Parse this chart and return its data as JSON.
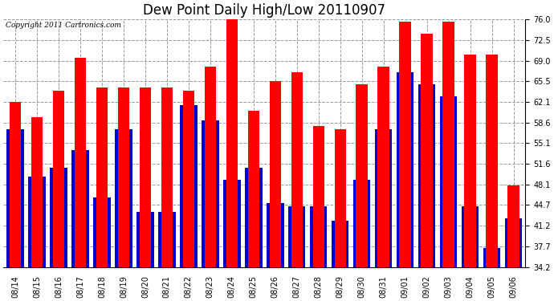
{
  "title": "Dew Point Daily High/Low 20110907",
  "copyright": "Copyright 2011 Cartronics.com",
  "dates": [
    "08/14",
    "08/15",
    "08/16",
    "08/17",
    "08/18",
    "08/19",
    "08/20",
    "08/21",
    "08/22",
    "08/23",
    "08/24",
    "08/25",
    "08/26",
    "08/27",
    "08/28",
    "08/29",
    "08/30",
    "08/31",
    "09/01",
    "09/02",
    "09/03",
    "09/04",
    "09/05",
    "09/06"
  ],
  "highs": [
    62.0,
    59.5,
    64.0,
    69.5,
    64.5,
    64.5,
    64.5,
    64.5,
    64.0,
    68.0,
    76.5,
    60.5,
    65.5,
    67.0,
    58.0,
    57.5,
    65.0,
    68.0,
    75.5,
    73.5,
    75.5,
    70.0,
    70.0,
    48.0
  ],
  "lows": [
    57.5,
    49.5,
    51.0,
    54.0,
    46.0,
    57.5,
    43.5,
    43.5,
    61.5,
    59.0,
    49.0,
    51.0,
    45.0,
    44.5,
    44.5,
    42.0,
    49.0,
    57.5,
    67.0,
    65.0,
    63.0,
    44.5,
    37.5,
    42.5
  ],
  "high_color": "#ff0000",
  "low_color": "#0000cc",
  "bg_color": "#ffffff",
  "grid_color": "#999999",
  "ymin": 34.2,
  "ymax": 76.0,
  "yticks": [
    34.2,
    37.7,
    41.2,
    44.7,
    48.1,
    51.6,
    55.1,
    58.6,
    62.1,
    65.5,
    69.0,
    72.5,
    76.0
  ],
  "title_fontsize": 12,
  "tick_fontsize": 7,
  "copyright_fontsize": 6.5
}
